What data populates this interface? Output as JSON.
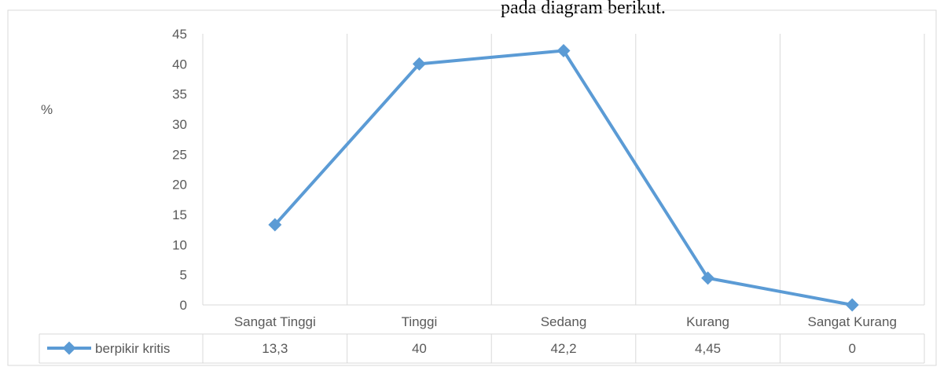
{
  "caption_text": "pada diagram berikut.",
  "chart_data": {
    "type": "line",
    "title": "",
    "xlabel": "",
    "ylabel": "%",
    "ylim": [
      0,
      45
    ],
    "yticks": [
      0,
      5,
      10,
      15,
      20,
      25,
      30,
      35,
      40,
      45
    ],
    "grid": "vertical",
    "legend_placement": "data-table",
    "categories": [
      "Sangat Tinggi",
      "Tinggi",
      "Sedang",
      "Kurang",
      "Sangat Kurang"
    ],
    "series": [
      {
        "name": "berpikir kritis",
        "values": [
          13.3,
          40,
          42.2,
          4.45,
          0
        ],
        "labels": [
          "13,3",
          "40",
          "42,2",
          "4,45",
          "0"
        ],
        "color": "#5B9BD5"
      }
    ]
  }
}
